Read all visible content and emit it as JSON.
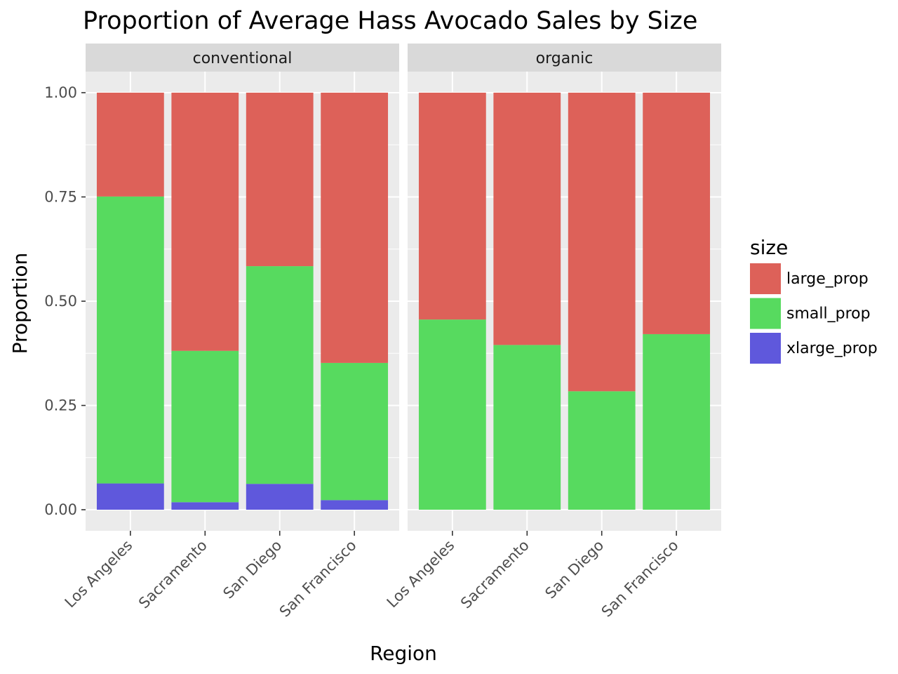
{
  "chart_data": {
    "type": "bar",
    "stacked": true,
    "title": "Proportion of Average Hass Avocado Sales by Size",
    "xlabel": "Region",
    "ylabel": "Proportion",
    "ylim": [
      0,
      1
    ],
    "yticks": [
      0,
      0.25,
      0.5,
      0.75,
      1.0
    ],
    "ytick_labels": [
      "0.00",
      "0.25",
      "0.50",
      "0.75",
      "1.00"
    ],
    "grid": true,
    "legend": {
      "title": "size",
      "placement": "right",
      "entries": [
        "large_prop",
        "small_prop",
        "xlarge_prop"
      ]
    },
    "colors": {
      "large_prop": "#dd6159",
      "small_prop": "#57da5f",
      "xlarge_prop": "#5f58dc"
    },
    "categories": [
      "Los Angeles",
      "Sacramento",
      "San Diego",
      "San Francisco"
    ],
    "facets": [
      {
        "label": "conventional",
        "series": [
          {
            "name": "xlarge_prop",
            "values": [
              0.063,
              0.018,
              0.062,
              0.023
            ]
          },
          {
            "name": "small_prop",
            "values": [
              0.688,
              0.363,
              0.522,
              0.329
            ]
          },
          {
            "name": "large_prop",
            "values": [
              0.249,
              0.619,
              0.416,
              0.648
            ]
          }
        ]
      },
      {
        "label": "organic",
        "series": [
          {
            "name": "xlarge_prop",
            "values": [
              0.0,
              0.0,
              0.0,
              0.0
            ]
          },
          {
            "name": "small_prop",
            "values": [
              0.456,
              0.395,
              0.284,
              0.421
            ]
          },
          {
            "name": "large_prop",
            "values": [
              0.544,
              0.605,
              0.716,
              0.579
            ]
          }
        ]
      }
    ]
  }
}
